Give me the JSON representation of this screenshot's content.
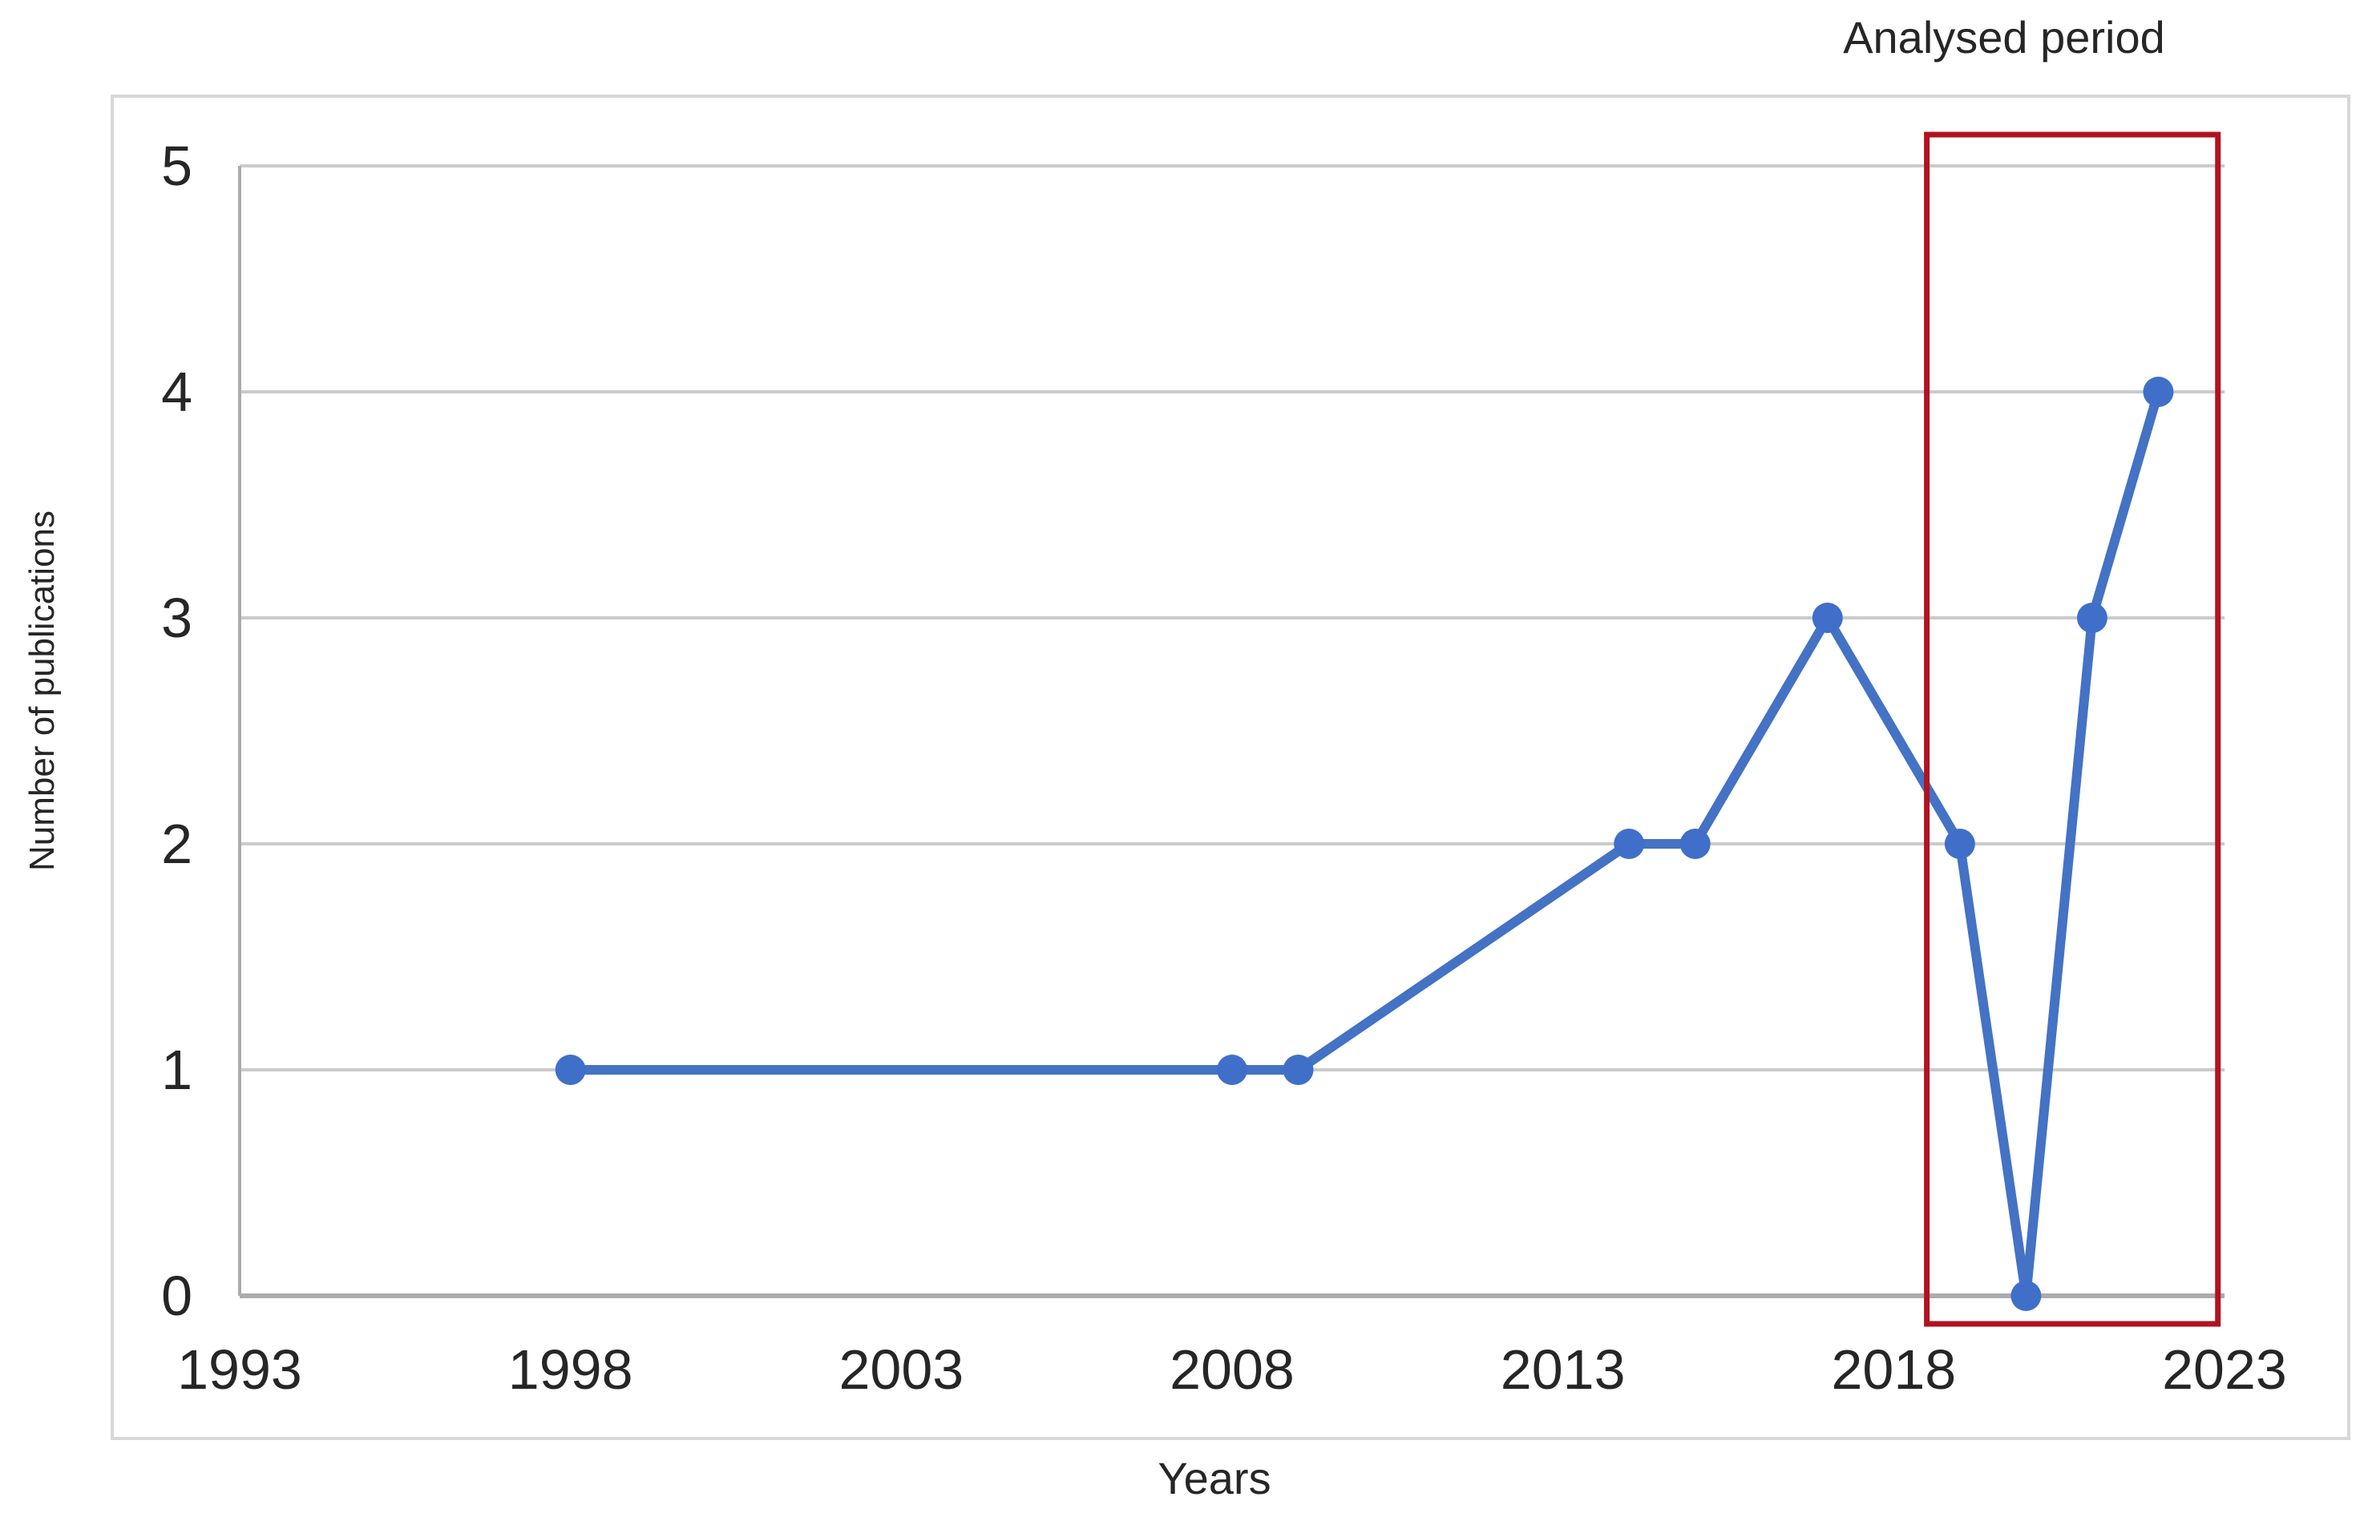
{
  "chart_data": {
    "type": "line",
    "title": "",
    "annotation": "Analysed period",
    "xlabel": "Years",
    "ylabel": "Number of publications",
    "x": [
      1998,
      2008,
      2009,
      2014,
      2015,
      2017,
      2019,
      2020,
      2021,
      2022
    ],
    "values": [
      1,
      1,
      1,
      2,
      2,
      3,
      2,
      0,
      3,
      4
    ],
    "series": [
      {
        "name": "Number of publications",
        "color": "#4472C4"
      }
    ],
    "xlim": [
      1993,
      2023
    ],
    "ylim": [
      0,
      5
    ],
    "x_ticks": [
      "1993",
      "1998",
      "2003",
      "2008",
      "2013",
      "2018",
      "2023"
    ],
    "y_ticks": [
      "0",
      "1",
      "2",
      "3",
      "4",
      "5"
    ],
    "grid": "horizontal",
    "legend_position": "none",
    "highlight_box": {
      "label": "Analysed period",
      "x_start": 2018.5,
      "x_end": 2022.9,
      "color": "#B01320"
    },
    "colors": {
      "series": "#4472C4",
      "marker": "#3F6FC9",
      "highlight": "#B01320",
      "grid": "#CBCBCB",
      "axis": "#ACACAC",
      "border": "#D8D8D8",
      "text": "#262626"
    }
  }
}
